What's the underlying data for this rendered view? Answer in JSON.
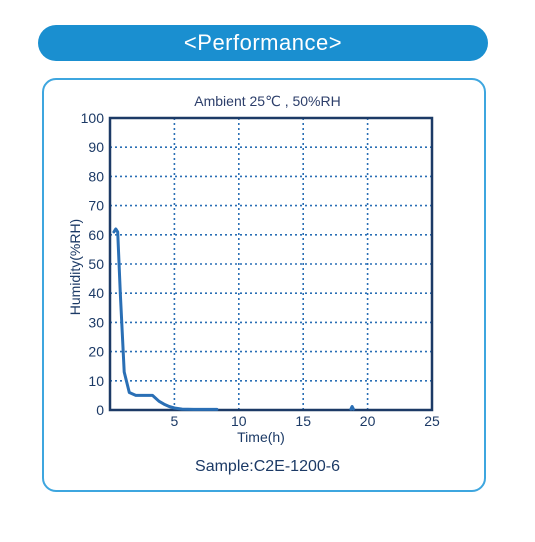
{
  "banner": {
    "text": "<Performance>"
  },
  "sample": {
    "text": "Sample:C2E-1200-6"
  },
  "chart_data": {
    "type": "line",
    "title": "Ambient 25℃ , 50%RH",
    "xlabel": "Time(h)",
    "ylabel": "Humidity(%RH)",
    "xlim": [
      0,
      25
    ],
    "ylim": [
      0,
      100
    ],
    "x_ticks": [
      5,
      10,
      15,
      20,
      25
    ],
    "y_ticks": [
      0,
      10,
      20,
      30,
      40,
      50,
      60,
      70,
      80,
      90,
      100
    ],
    "grid": true,
    "colors": {
      "line": "#2a6fb5",
      "grid": "#2a6fb5",
      "frame": "#1c3a66"
    },
    "series": [
      {
        "x": [
          0.3,
          0.45,
          0.6,
          0.8,
          1.1,
          1.5,
          2.0,
          2.5,
          3.0,
          3.3,
          3.8,
          4.2,
          4.6,
          5.0,
          5.6,
          6.5,
          7.5,
          8.3
        ],
        "y": [
          61,
          62,
          61,
          40,
          13,
          6,
          5,
          5,
          5,
          5,
          3,
          2,
          1.2,
          0.7,
          0.3,
          0.2,
          0.2,
          0.2
        ]
      },
      {
        "x": [
          18.7,
          18.8,
          18.9
        ],
        "y": [
          0.3,
          1.2,
          0.3
        ]
      }
    ]
  }
}
